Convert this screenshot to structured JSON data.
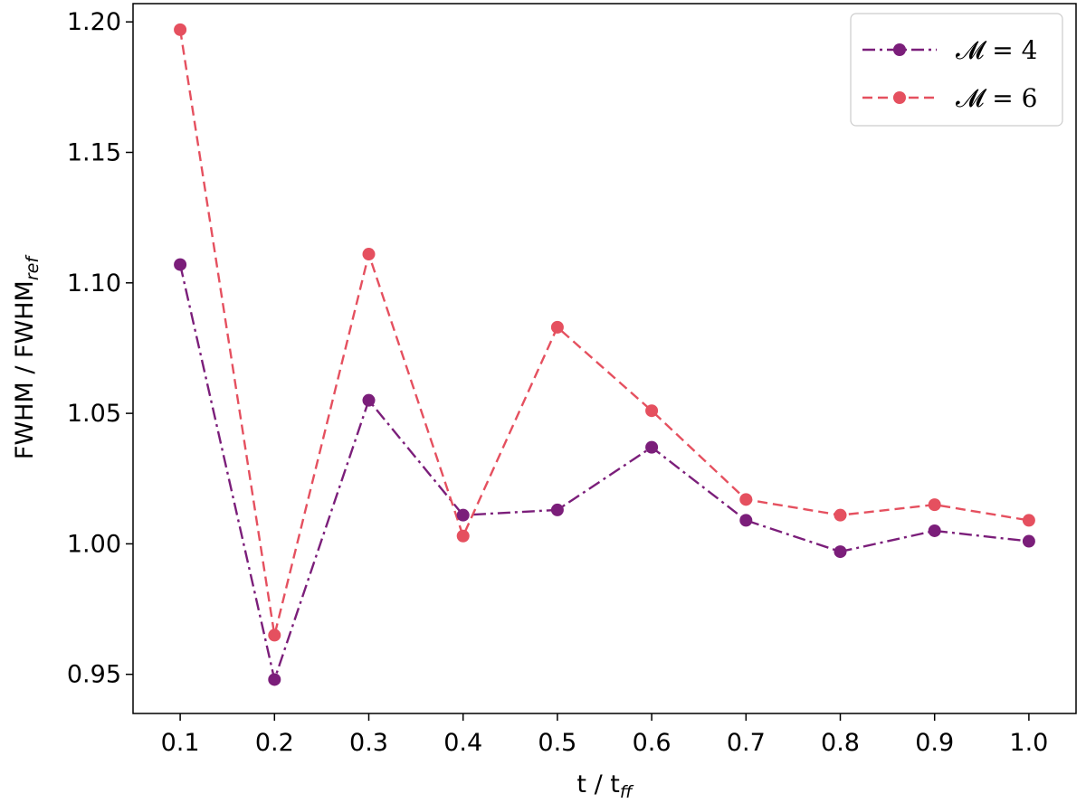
{
  "chart_data": {
    "type": "line",
    "x": [
      0.1,
      0.2,
      0.3,
      0.4,
      0.5,
      0.6,
      0.7,
      0.8,
      0.9,
      1.0
    ],
    "series": [
      {
        "name": "𝓜 = 4",
        "values": [
          1.107,
          0.948,
          1.055,
          1.011,
          1.013,
          1.037,
          1.009,
          0.997,
          1.005,
          1.001
        ],
        "color": "#7b1e7a",
        "line_style": "dash-dot",
        "marker": "circle"
      },
      {
        "name": "𝓜 = 6",
        "values": [
          1.197,
          0.965,
          1.111,
          1.003,
          1.083,
          1.051,
          1.017,
          1.011,
          1.015,
          1.009
        ],
        "color": "#e5505f",
        "line_style": "dashed",
        "marker": "circle"
      }
    ],
    "x_ticks": [
      "0.1",
      "0.2",
      "0.3",
      "0.4",
      "0.5",
      "0.6",
      "0.7",
      "0.8",
      "0.9",
      "1.0"
    ],
    "y_ticks": [
      "0.95",
      "1.00",
      "1.05",
      "1.10",
      "1.15",
      "1.20"
    ],
    "y_tick_values": [
      0.95,
      1.0,
      1.05,
      1.1,
      1.15,
      1.2
    ],
    "xlabel": {
      "main": "t / t",
      "sub": "ff"
    },
    "ylabel": {
      "main": "FWHM / FWHM",
      "sub": "ref"
    },
    "xlim": [
      0.05,
      1.05
    ],
    "ylim": [
      0.935,
      1.207
    ],
    "grid": false,
    "legend_position": "top-right"
  }
}
